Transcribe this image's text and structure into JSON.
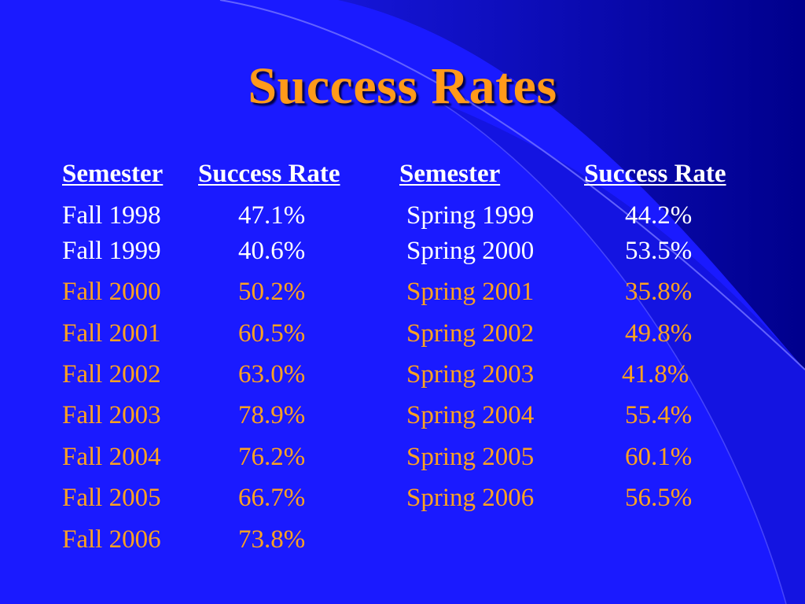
{
  "slide": {
    "title": "Success Rates",
    "colors": {
      "background": "#1a1aff",
      "background_dark": "#0000a8",
      "title": "#ff9a1a",
      "highlight_text": "#ffa21f",
      "normal_text": "#ffffff"
    }
  },
  "table": {
    "headers": [
      "Semester",
      "Success Rate",
      "Semester",
      "Success Rate"
    ],
    "rows": [
      {
        "fall": "Fall 1998",
        "fall_rate": "47.1%",
        "spring": "Spring 1999",
        "spring_rate": "44.2%"
      },
      {
        "fall": "Fall 1999",
        "fall_rate": "40.6%",
        "spring": "Spring 2000",
        "spring_rate": "53.5%"
      },
      {
        "fall": "Fall 2000",
        "fall_rate": "50.2%",
        "spring": "Spring 2001",
        "spring_rate": "35.8%"
      },
      {
        "fall": "Fall 2001",
        "fall_rate": "60.5%",
        "spring": "Spring 2002",
        "spring_rate": "49.8%"
      },
      {
        "fall": "Fall 2002",
        "fall_rate": "63.0%",
        "spring": "Spring 2003",
        "spring_rate": "41.8%"
      },
      {
        "fall": "Fall 2003",
        "fall_rate": "78.9%",
        "spring": "Spring 2004",
        "spring_rate": "55.4%"
      },
      {
        "fall": "Fall 2004",
        "fall_rate": "76.2%",
        "spring": "Spring 2005",
        "spring_rate": "60.1%"
      },
      {
        "fall": "Fall 2005",
        "fall_rate": "66.7%",
        "spring": "Spring 2006",
        "spring_rate": "56.5%"
      },
      {
        "fall": "Fall 2006",
        "fall_rate": "73.8%",
        "spring": "",
        "spring_rate": ""
      }
    ]
  }
}
